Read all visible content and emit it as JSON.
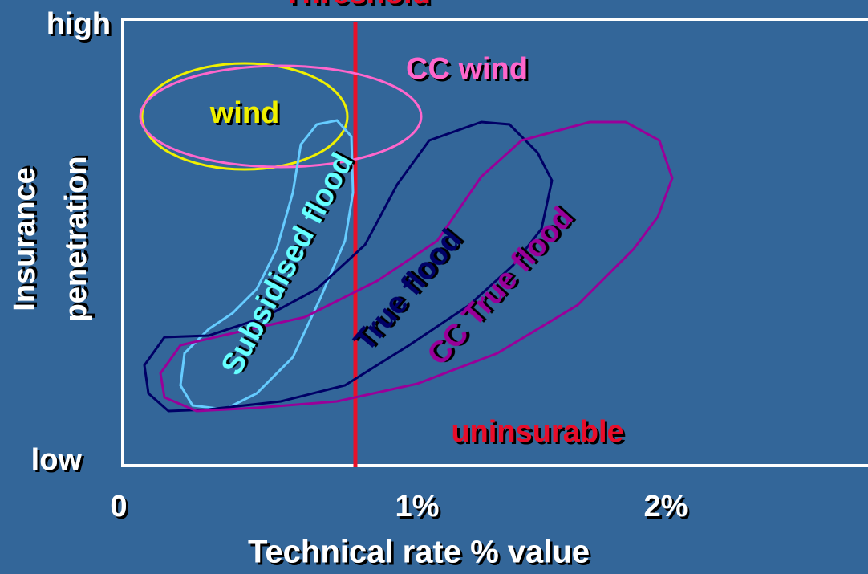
{
  "title": "Threshold",
  "y_axis": {
    "label": "Insurance penetration",
    "high": "high",
    "low": "low"
  },
  "x_axis": {
    "label": "Technical rate % value",
    "ticks": [
      "0",
      "1%",
      "2%"
    ]
  },
  "regions": [
    {
      "label": "wind"
    },
    {
      "label": "CC wind"
    },
    {
      "label": "Subsidised flood"
    },
    {
      "label": "True flood"
    },
    {
      "label": "CC True flood"
    },
    {
      "label": "uninsurable"
    }
  ]
}
